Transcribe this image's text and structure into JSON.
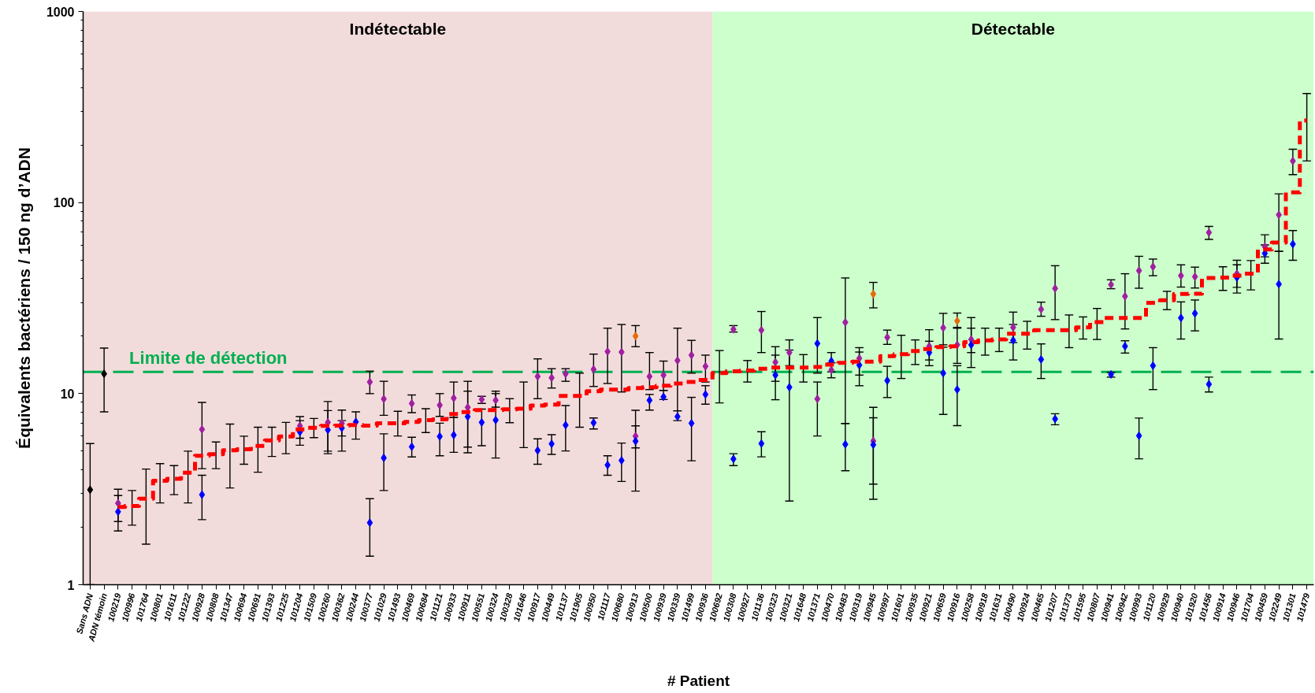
{
  "chart_data": {
    "type": "scatter",
    "ylabel": "Équivalents bactériens / 150 ng d’ADN",
    "xlabel": "# Patient",
    "log": true,
    "marker": "diamond",
    "categories": [
      "Sans ADN",
      "ADN témoin",
      "100219",
      "100996",
      "101764",
      "100801",
      "101611",
      "101222",
      "100928",
      "100808",
      "101347",
      "100694",
      "100691",
      "101393",
      "101225",
      "101204",
      "101509",
      "100260",
      "100362",
      "100244",
      "100377",
      "101029",
      "101493",
      "100469",
      "100684",
      "101121",
      "100933",
      "100911",
      "100551",
      "100324",
      "100328",
      "101646",
      "100917",
      "100449",
      "101137",
      "101905",
      "100950",
      "101117",
      "100680",
      "100913",
      "100500",
      "100939",
      "100339",
      "101499",
      "100936",
      "100692",
      "100308",
      "100927",
      "101136",
      "100323",
      "100321",
      "101648",
      "101371",
      "100470",
      "100483",
      "100319",
      "100945",
      "100997",
      "101601",
      "100935",
      "100921",
      "100659",
      "100916",
      "100258",
      "100918",
      "101631",
      "100490",
      "100924",
      "100465",
      "101207",
      "101373",
      "101595",
      "100807",
      "100941",
      "100942",
      "100993",
      "101120",
      "100929",
      "100940",
      "101920",
      "101456",
      "100914",
      "100946",
      "101704",
      "100459",
      "102249",
      "101301",
      "101479"
    ],
    "ylim": [
      1,
      1000
    ],
    "yticks": [
      1,
      {
        "value": 2,
        "label": null
      },
      {
        "value": 3,
        "label": null
      },
      {
        "value": 4,
        "label": null
      },
      {
        "value": 5,
        "label": null
      },
      {
        "value": 6,
        "label": null
      },
      {
        "value": 7,
        "label": null
      },
      {
        "value": 8,
        "label": null
      },
      {
        "value": 9,
        "label": null
      },
      10,
      {
        "value": 20,
        "label": null
      },
      {
        "value": 30,
        "label": null
      },
      {
        "value": 40,
        "label": null
      },
      {
        "value": 50,
        "label": null
      },
      {
        "value": 60,
        "label": null
      },
      {
        "value": 70,
        "label": null
      },
      {
        "value": 80,
        "label": null
      },
      {
        "value": 90,
        "label": null
      },
      100,
      {
        "value": 200,
        "label": null
      },
      {
        "value": 300,
        "label": null
      },
      {
        "value": 400,
        "label": null
      },
      {
        "value": 500,
        "label": null
      },
      {
        "value": 600,
        "label": null
      },
      {
        "value": 700,
        "label": null
      },
      {
        "value": 800,
        "label": null
      },
      {
        "value": 900,
        "label": null
      },
      1000
    ],
    "bands": [
      {
        "axis": "x",
        "from": "Sans ADN",
        "to": "100936",
        "label": "Indétectable",
        "color": "#f2dcdb"
      },
      {
        "axis": "x",
        "from": "100692",
        "to": "101479",
        "label": "Détectable",
        "color": "#ccffcc"
      }
    ],
    "ref_lines": [
      {
        "axis": "y",
        "value": 13,
        "label": "Limite de détection",
        "color": "#00b050",
        "line_style": "dashed"
      }
    ],
    "series": [
      {
        "color": "#000000",
        "values": [
          3.14,
          12.7,
          null,
          null,
          null,
          null,
          null,
          null,
          null,
          null,
          null,
          null,
          null,
          null,
          null,
          null,
          null,
          null,
          null,
          null,
          null,
          null,
          null,
          null,
          null,
          null,
          null,
          null,
          null,
          null,
          null,
          null,
          null,
          null,
          null,
          null,
          null,
          null,
          null,
          null,
          null,
          null,
          null,
          null,
          null,
          null,
          null,
          null,
          null,
          null,
          null,
          null,
          null,
          null,
          null,
          null,
          null,
          null,
          null,
          null,
          null,
          null,
          null,
          null,
          null,
          null,
          null,
          null,
          null,
          null,
          null,
          null,
          null,
          null,
          null,
          null,
          null,
          null,
          null,
          null,
          null,
          null,
          null,
          null,
          null,
          null,
          null,
          null
        ],
        "errors": [
          [
            1,
            5.48
          ],
          [
            8.03,
            17.3
          ],
          null,
          null,
          null,
          null,
          null,
          null,
          null,
          null,
          null,
          null,
          null,
          null,
          null,
          null,
          null,
          null,
          null,
          null,
          null,
          null,
          null,
          null,
          null,
          null,
          null,
          null,
          null,
          null,
          null,
          null,
          null,
          null,
          null,
          null,
          null,
          null,
          null,
          null,
          null,
          null,
          null,
          null,
          null,
          null,
          null,
          null,
          null,
          null,
          null,
          null,
          null,
          null,
          null,
          null,
          null,
          null,
          null,
          null,
          null,
          null,
          null,
          null,
          null,
          null,
          null,
          null,
          null,
          null,
          null,
          null,
          null,
          null,
          null,
          null,
          null,
          null,
          null,
          null,
          null,
          null,
          null,
          null,
          null,
          null,
          null,
          null
        ]
      },
      {
        "color": "#a020a0",
        "values": [
          null,
          null,
          2.67,
          null,
          null,
          null,
          null,
          null,
          6.5,
          null,
          null,
          null,
          null,
          null,
          null,
          6.78,
          null,
          7.07,
          6.98,
          null,
          11.5,
          9.38,
          null,
          8.88,
          null,
          8.7,
          9.47,
          8.47,
          9.32,
          9.23,
          null,
          null,
          12.3,
          12.1,
          12.7,
          null,
          13.4,
          16.6,
          16.5,
          5.99,
          12.3,
          12.5,
          14.9,
          15.9,
          13.9,
          null,
          21.7,
          null,
          21.5,
          14.6,
          16.4,
          null,
          9.38,
          13.3,
          23.6,
          15.3,
          5.65,
          19.7,
          null,
          null,
          17.7,
          22.1,
          18.0,
          19.2,
          null,
          null,
          22.2,
          null,
          27.6,
          35.5,
          null,
          null,
          null,
          37.2,
          32.3,
          44.0,
          46.1,
          null,
          41.4,
          40.9,
          69.7,
          null,
          42.4,
          null,
          58.7,
          86.2,
          165,
          null
        ],
        "errors": [
          null,
          null,
          [
            2.14,
            3.16
          ],
          null,
          null,
          null,
          null,
          null,
          [
            4.05,
            9.0
          ],
          null,
          null,
          null,
          null,
          null,
          null,
          [
            5.84,
            7.58
          ],
          null,
          [
            5.0,
            9.09
          ],
          [
            5.0,
            8.2
          ],
          null,
          [
            10.0,
            13.1
          ],
          [
            7.7,
            11.6
          ],
          null,
          [
            7.95,
            9.84
          ],
          null,
          [
            7.6,
            10.0
          ],
          [
            7.5,
            11.5
          ],
          [
            5.25,
            10.3
          ],
          [
            8.89,
            9.68
          ],
          [
            8.5,
            10.0
          ],
          null,
          null,
          [
            9.41,
            15.2
          ],
          [
            10.7,
            13.5
          ],
          [
            11.6,
            13.5
          ],
          null,
          [
            10.9,
            16.1
          ],
          [
            11.3,
            22.0
          ],
          [
            10.2,
            23.0
          ],
          [
            5.2,
            6.78
          ],
          [
            10.5,
            16.4
          ],
          [
            10.4,
            14.8
          ],
          [
            8.13,
            22.0
          ],
          [
            12.8,
            19.0
          ],
          [
            11.5,
            15.9
          ],
          null,
          [
            21.0,
            22.7
          ],
          null,
          [
            16.4,
            26.9
          ],
          [
            11.6,
            17.6
          ],
          [
            14.0,
            19.1
          ],
          null,
          [
            6.0,
            11.5
          ],
          [
            12.1,
            14.5
          ],
          [
            6.98,
            40.3
          ],
          [
            12.5,
            17.4
          ],
          [
            3.36,
            7.47
          ],
          [
            18.1,
            21.5
          ],
          null,
          null,
          [
            15.0,
            21.6
          ],
          [
            18.0,
            26.3
          ],
          [
            14.4,
            22.2
          ],
          [
            16.4,
            25.0
          ],
          null,
          null,
          [
            18.5,
            26.7
          ],
          null,
          [
            25.4,
            30.1
          ],
          [
            24.4,
            46.7
          ],
          null,
          null,
          null,
          [
            35.4,
            39.4
          ],
          [
            21.8,
            42.4
          ],
          [
            35.6,
            52.3
          ],
          [
            41.4,
            50.6
          ],
          null,
          [
            36.1,
            47.2
          ],
          [
            35.7,
            45.9
          ],
          [
            64.1,
            75.0
          ],
          null,
          [
            36.0,
            47.2
          ],
          null,
          [
            52.0,
            67.8
          ],
          [
            55.5,
            111
          ],
          [
            140,
            190
          ],
          null
        ]
      },
      {
        "color": "#0000ff",
        "values": [
          null,
          null,
          2.41,
          null,
          null,
          null,
          null,
          null,
          2.96,
          null,
          null,
          null,
          null,
          null,
          null,
          6.3,
          null,
          6.46,
          6.61,
          7.11,
          2.11,
          4.61,
          null,
          5.27,
          null,
          5.97,
          6.07,
          7.58,
          7.07,
          7.27,
          null,
          null,
          5.04,
          5.46,
          6.84,
          null,
          7.04,
          4.23,
          4.47,
          5.64,
          9.23,
          9.62,
          7.58,
          7.0,
          9.9,
          null,
          4.55,
          null,
          5.48,
          12.5,
          10.8,
          null,
          18.3,
          14.8,
          5.43,
          14.1,
          5.4,
          11.7,
          null,
          null,
          16.4,
          12.8,
          10.5,
          18.0,
          null,
          null,
          19.0,
          null,
          15.1,
          7.37,
          null,
          null,
          null,
          12.6,
          17.7,
          6.02,
          14.0,
          null,
          24.9,
          26.3,
          11.2,
          null,
          40.5,
          null,
          54.2,
          37.4,
          60.6,
          null
        ],
        "errors": [
          null,
          null,
          [
            1.91,
            2.93
          ],
          null,
          null,
          null,
          null,
          null,
          [
            2.19,
            3.74
          ],
          null,
          null,
          null,
          null,
          null,
          null,
          [
            5.37,
            7.22
          ],
          null,
          [
            4.85,
            8.15
          ],
          [
            6.0,
            7.22
          ],
          [
            5.78,
            8.03
          ],
          [
            1.41,
            2.82
          ],
          [
            3.11,
            6.16
          ],
          null,
          [
            4.66,
            5.91
          ],
          null,
          [
            4.73,
            7.0
          ],
          [
            4.93,
            7.5
          ],
          [
            4.9,
            11.6
          ],
          [
            5.34,
            8.3
          ],
          [
            4.6,
            10.3
          ],
          null,
          null,
          [
            4.27,
            5.8
          ],
          [
            4.81,
            6.1
          ],
          [
            5.01,
            8.66
          ],
          null,
          [
            6.53,
            7.46
          ],
          [
            3.74,
            4.73
          ],
          [
            3.47,
            5.51
          ],
          [
            3.09,
            8.18
          ],
          [
            8.2,
            9.9
          ],
          [
            9.32,
            10.4
          ],
          [
            7.22,
            8.13
          ],
          [
            4.45,
            9.56
          ],
          [
            8.8,
            11.0
          ],
          null,
          [
            4.2,
            4.85
          ],
          null,
          [
            4.67,
            6.32
          ],
          [
            9.29,
            15.9
          ],
          [
            2.74,
            16.9
          ],
          null,
          [
            12.8,
            25.0
          ],
          [
            13.0,
            16.4
          ],
          [
            3.95,
            6.98
          ],
          [
            11.0,
            16.5
          ],
          [
            2.8,
            8.48
          ],
          [
            9.54,
            13.9
          ],
          null,
          null,
          [
            14.0,
            18.8
          ],
          [
            7.78,
            17.5
          ],
          [
            6.8,
            14.0
          ],
          [
            13.7,
            22.0
          ],
          null,
          null,
          [
            15.0,
            23.0
          ],
          null,
          [
            12.0,
            18.2
          ],
          [
            6.87,
            7.85
          ],
          null,
          null,
          null,
          [
            12.2,
            12.9
          ],
          [
            16.3,
            18.9
          ],
          [
            4.56,
            7.45
          ],
          [
            10.5,
            17.4
          ],
          null,
          [
            19.3,
            30.2
          ],
          [
            21.3,
            30.9
          ],
          [
            10.2,
            12.2
          ],
          null,
          [
            33.6,
            49.9
          ],
          null,
          [
            48.1,
            60.0
          ],
          [
            19.3,
            55.5
          ],
          [
            49.9,
            71.3
          ],
          null
        ]
      },
      {
        "color": "#e46c0a",
        "values": [
          null,
          null,
          null,
          null,
          null,
          null,
          null,
          null,
          null,
          null,
          null,
          null,
          null,
          null,
          null,
          null,
          null,
          null,
          null,
          null,
          null,
          null,
          null,
          null,
          null,
          null,
          null,
          null,
          null,
          null,
          null,
          null,
          null,
          null,
          null,
          null,
          null,
          null,
          null,
          20.0,
          null,
          null,
          null,
          null,
          null,
          null,
          null,
          null,
          null,
          null,
          null,
          null,
          null,
          null,
          null,
          null,
          33.2,
          null,
          null,
          null,
          null,
          null,
          24.0,
          null,
          null,
          null,
          null,
          null,
          null,
          null,
          null,
          null,
          null,
          null,
          null,
          null,
          null,
          null,
          null,
          null,
          null,
          null,
          null,
          null,
          null,
          null,
          null,
          null
        ],
        "errors": [
          null,
          null,
          null,
          null,
          null,
          null,
          null,
          null,
          null,
          null,
          null,
          null,
          null,
          null,
          null,
          null,
          null,
          null,
          null,
          null,
          null,
          null,
          null,
          null,
          null,
          null,
          null,
          null,
          null,
          null,
          null,
          null,
          null,
          null,
          null,
          null,
          null,
          null,
          null,
          [
            17.6,
            22.7
          ],
          null,
          null,
          null,
          null,
          null,
          null,
          null,
          null,
          null,
          null,
          null,
          null,
          null,
          null,
          null,
          null,
          [
            28.1,
            38.2
          ],
          null,
          null,
          null,
          null,
          null,
          [
            22.0,
            26.4
          ],
          null,
          null,
          null,
          null,
          null,
          null,
          null,
          null,
          null,
          null,
          null,
          null,
          null,
          null,
          null,
          null,
          null,
          null,
          null,
          null,
          null,
          null,
          null,
          null,
          null
        ]
      },
      {
        "type": "step",
        "color": "#ff0000",
        "marker": "none",
        "line_style": "dashed",
        "values": [
          null,
          null,
          2.55,
          2.58,
          2.82,
          3.5,
          3.58,
          3.86,
          4.73,
          4.82,
          5.06,
          5.12,
          5.32,
          5.69,
          5.97,
          6.5,
          6.63,
          6.78,
          6.8,
          6.85,
          6.8,
          7.0,
          7.0,
          7.11,
          7.27,
          7.34,
          7.82,
          8.0,
          8.2,
          8.2,
          8.28,
          8.34,
          8.66,
          8.77,
          9.72,
          9.72,
          10.3,
          10.5,
          10.5,
          10.7,
          10.8,
          11.0,
          11.3,
          11.5,
          11.8,
          12.8,
          13.1,
          13.2,
          13.5,
          13.7,
          13.7,
          13.7,
          13.8,
          14.2,
          14.5,
          14.7,
          14.7,
          15.7,
          16.1,
          16.7,
          17.1,
          17.5,
          17.7,
          18.6,
          19.0,
          19.2,
          20.6,
          20.6,
          21.5,
          21.5,
          21.5,
          22.2,
          23.7,
          24.9,
          24.9,
          24.9,
          29.9,
          30.8,
          33.2,
          33.3,
          40.3,
          40.5,
          41.4,
          42.4,
          56.8,
          61.7,
          113,
          269
        ],
        "errors": [
          null,
          null,
          null,
          [
            2.05,
            3.11
          ],
          [
            1.63,
            4.03
          ],
          [
            2.68,
            4.3
          ],
          [
            2.96,
            4.2
          ],
          [
            2.68,
            5.0
          ],
          null,
          [
            4.05,
            5.58
          ],
          [
            3.21,
            6.93
          ],
          [
            4.27,
            5.99
          ],
          [
            3.88,
            6.67
          ],
          [
            4.69,
            6.67
          ],
          [
            4.85,
            7.07
          ],
          null,
          [
            5.88,
            7.41
          ],
          null,
          null,
          null,
          null,
          null,
          [
            6.0,
            8.08
          ],
          null,
          [
            6.26,
            8.34
          ],
          null,
          null,
          null,
          null,
          null,
          [
            7.04,
            9.41
          ],
          [
            5.22,
            11.5
          ],
          null,
          null,
          null,
          [
            6.67,
            12.8
          ],
          null,
          null,
          null,
          null,
          null,
          null,
          null,
          null,
          null,
          [
            8.94,
            16.8
          ],
          null,
          [
            11.5,
            14.9
          ],
          null,
          null,
          null,
          [
            11.5,
            16.0
          ],
          null,
          null,
          null,
          null,
          null,
          null,
          [
            12.0,
            20.2
          ],
          [
            14.2,
            19.1
          ],
          null,
          null,
          null,
          null,
          [
            15.9,
            22.0
          ],
          [
            16.6,
            22.0
          ],
          null,
          [
            17.1,
            23.9
          ],
          null,
          null,
          [
            17.4,
            25.8
          ],
          [
            19.3,
            25.2
          ],
          [
            19.2,
            27.9
          ],
          null,
          null,
          null,
          null,
          [
            27.5,
            34.3
          ],
          null,
          null,
          null,
          [
            34.7,
            46.1
          ],
          null,
          [
            34.9,
            49.7
          ],
          null,
          null,
          null,
          [
            165,
            372
          ]
        ]
      }
    ]
  }
}
